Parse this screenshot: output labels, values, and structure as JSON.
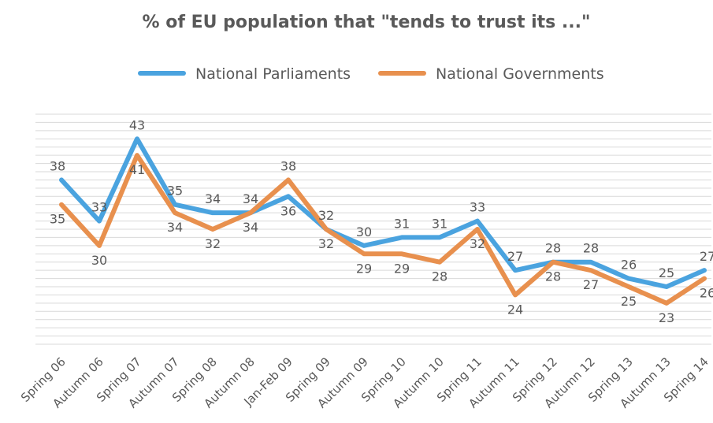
{
  "chart_data": {
    "type": "line",
    "title": "% of EU population that \"tends to trust its ...\"",
    "xlabel": "",
    "ylabel": "",
    "ylim": [
      18,
      46
    ],
    "grid": true,
    "legend_position": "top",
    "categories": [
      "Spring 06",
      "Autumn 06",
      "Spring 07",
      "Autumn 07",
      "Spring 08",
      "Autumn 08",
      "Jan-Feb 09",
      "Spring 09",
      "Autumn 09",
      "Spring 10",
      "Autumn 10",
      "Spring 11",
      "Autumn 11",
      "Spring 12",
      "Autumn 12",
      "Spring 13",
      "Autumn 13",
      "Spring 14"
    ],
    "series": [
      {
        "name": "National Parliaments",
        "color": "#4aa3df",
        "values": [
          38,
          33,
          43,
          35,
          34,
          34,
          36,
          32,
          30,
          31,
          31,
          33,
          27,
          28,
          28,
          26,
          25,
          27
        ]
      },
      {
        "name": "National Governments",
        "color": "#e8904e",
        "values": [
          35,
          30,
          41,
          34,
          32,
          34,
          38,
          32,
          29,
          29,
          28,
          32,
          24,
          28,
          27,
          25,
          23,
          26
        ]
      }
    ]
  }
}
